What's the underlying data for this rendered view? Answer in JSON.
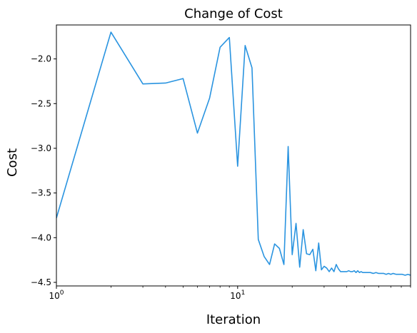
{
  "chart_data": {
    "type": "line",
    "title": "Change of Cost",
    "xlabel": "Iteration",
    "ylabel": "Cost",
    "xscale": "log",
    "xlim": [
      1,
      90
    ],
    "ylim": [
      -4.54,
      -1.62
    ],
    "grid": false,
    "legend": "none",
    "x_ticks": [
      {
        "value": 1,
        "base": "10",
        "exp": "0"
      },
      {
        "value": 10,
        "base": "10",
        "exp": "1"
      }
    ],
    "y_ticks": [
      {
        "value": -2.0,
        "label": "−2.0"
      },
      {
        "value": -2.5,
        "label": "−2.5"
      },
      {
        "value": -3.0,
        "label": "−3.0"
      },
      {
        "value": -3.5,
        "label": "−3.5"
      },
      {
        "value": -4.0,
        "label": "−4.0"
      },
      {
        "value": -4.5,
        "label": "−4.5"
      }
    ],
    "series": [
      {
        "color": "#2a94e0",
        "x": [
          1,
          2,
          3,
          4,
          5,
          6,
          7,
          8,
          9,
          10,
          11,
          12,
          13,
          14,
          15,
          16,
          17,
          18,
          19,
          20,
          21,
          22,
          23,
          24,
          25,
          26,
          27,
          28,
          29,
          30,
          31,
          32,
          33,
          34,
          35,
          36,
          37,
          38,
          39,
          40,
          41,
          42,
          43,
          44,
          45,
          46,
          47,
          48,
          49,
          50,
          52,
          54,
          56,
          58,
          60,
          62,
          64,
          66,
          68,
          70,
          72,
          75,
          78,
          81,
          84,
          87,
          90
        ],
        "y": [
          -3.78,
          -1.7,
          -2.28,
          -2.27,
          -2.22,
          -2.83,
          -2.44,
          -1.87,
          -1.76,
          -3.2,
          -1.85,
          -2.1,
          -4.02,
          -4.21,
          -4.3,
          -4.07,
          -4.12,
          -4.3,
          -2.98,
          -4.19,
          -3.84,
          -4.33,
          -3.91,
          -4.18,
          -4.19,
          -4.13,
          -4.37,
          -4.06,
          -4.36,
          -4.32,
          -4.34,
          -4.38,
          -4.34,
          -4.38,
          -4.3,
          -4.35,
          -4.38,
          -4.38,
          -4.38,
          -4.38,
          -4.37,
          -4.38,
          -4.38,
          -4.37,
          -4.39,
          -4.37,
          -4.39,
          -4.38,
          -4.39,
          -4.39,
          -4.39,
          -4.39,
          -4.4,
          -4.39,
          -4.4,
          -4.4,
          -4.4,
          -4.41,
          -4.4,
          -4.41,
          -4.4,
          -4.41,
          -4.41,
          -4.41,
          -4.42,
          -4.41,
          -4.42
        ]
      }
    ]
  }
}
